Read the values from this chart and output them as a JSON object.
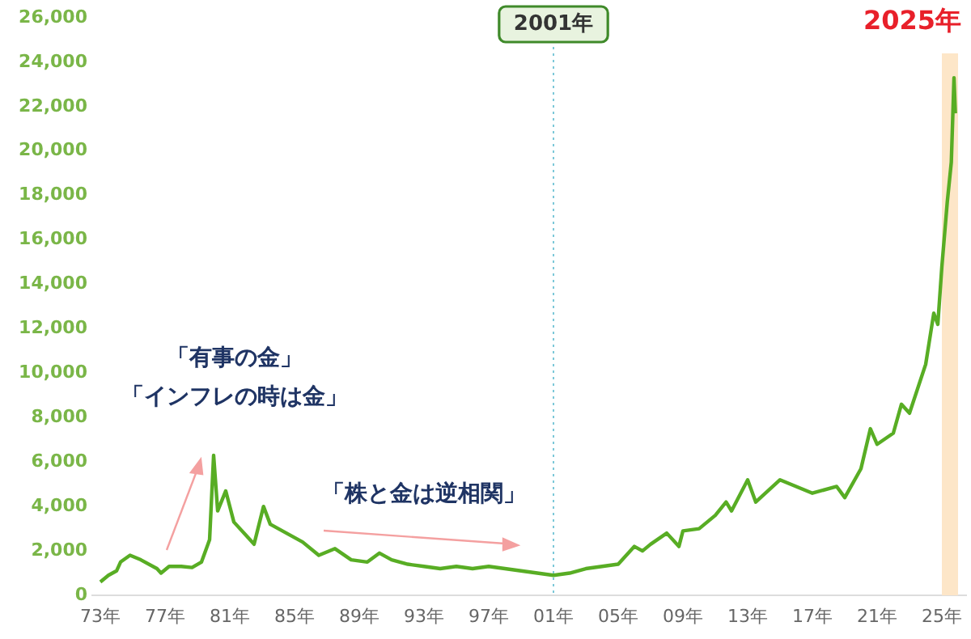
{
  "chart_data": {
    "type": "line",
    "x": [
      "1973-01",
      "1973-07",
      "1974-01",
      "1974-04",
      "1974-11",
      "1975-07",
      "1976-07",
      "1976-10",
      "1977-04",
      "1978-01",
      "1978-09",
      "1979-04",
      "1979-10",
      "1980-01",
      "1980-04",
      "1980-10",
      "1981-04",
      "1982-01",
      "1982-07",
      "1983-02",
      "1983-07",
      "1984-07",
      "1985-07",
      "1986-07",
      "1987-07",
      "1988-07",
      "1989-07",
      "1990-04",
      "1991-01",
      "1992-01",
      "1993-01",
      "1994-01",
      "1995-01",
      "1996-01",
      "1997-01",
      "1998-01",
      "1999-01",
      "2000-01",
      "2001-01",
      "2002-01",
      "2003-01",
      "2004-01",
      "2005-01",
      "2006-01",
      "2006-07",
      "2007-01",
      "2008-01",
      "2008-10",
      "2009-01",
      "2010-01",
      "2011-01",
      "2011-09",
      "2012-01",
      "2013-01",
      "2013-07",
      "2015-01",
      "2017-01",
      "2018-07",
      "2019-01",
      "2020-01",
      "2020-08",
      "2021-01",
      "2022-01",
      "2022-07",
      "2023-01",
      "2024-01",
      "2024-07",
      "2024-10",
      "2025-01",
      "2025-05",
      "2025-08",
      "2025-10",
      "2025-11"
    ],
    "series": [
      {
        "color": "#58ad24",
        "values": [
          600,
          900,
          1100,
          1500,
          1800,
          1600,
          1200,
          1000,
          1300,
          1300,
          1250,
          1500,
          2500,
          6300,
          3800,
          4700,
          3300,
          2700,
          2300,
          4000,
          3200,
          2800,
          2400,
          1800,
          2100,
          1600,
          1500,
          1900,
          1600,
          1400,
          1300,
          1200,
          1300,
          1200,
          1300,
          1200,
          1100,
          1000,
          900,
          1000,
          1200,
          1300,
          1400,
          2200,
          2000,
          2300,
          2800,
          2200,
          2900,
          3000,
          3600,
          4200,
          3800,
          5200,
          4200,
          5200,
          4600,
          4900,
          4400,
          5700,
          7500,
          6800,
          7300,
          8600,
          8200,
          10400,
          12700,
          12200,
          14800,
          17700,
          19500,
          23300,
          21700
        ]
      }
    ],
    "xlim": [
      "1972-07",
      "2026-07"
    ],
    "xticks": [
      {
        "value": "1973",
        "label": "73年"
      },
      {
        "value": "1977",
        "label": "77年"
      },
      {
        "value": "1981",
        "label": "81年"
      },
      {
        "value": "1985",
        "label": "85年"
      },
      {
        "value": "1989",
        "label": "89年"
      },
      {
        "value": "1993",
        "label": "93年"
      },
      {
        "value": "1997",
        "label": "97年"
      },
      {
        "value": "2001",
        "label": "01年"
      },
      {
        "value": "2005",
        "label": "05年"
      },
      {
        "value": "2009",
        "label": "09年"
      },
      {
        "value": "2013",
        "label": "13年"
      },
      {
        "value": "2017",
        "label": "17年"
      },
      {
        "value": "2021",
        "label": "21年"
      },
      {
        "value": "2025",
        "label": "25年"
      }
    ],
    "ylim": [
      0,
      26000
    ],
    "yticks": [
      0,
      {
        "value": 2000,
        "label": "2,000"
      },
      {
        "value": 4000,
        "label": "4,000"
      },
      {
        "value": 6000,
        "label": "6,000"
      },
      {
        "value": 8000,
        "label": "8,000"
      },
      {
        "value": 10000,
        "label": "10,000"
      },
      {
        "value": 12000,
        "label": "12,000"
      },
      {
        "value": 14000,
        "label": "14,000"
      },
      {
        "value": 16000,
        "label": "16,000"
      },
      {
        "value": 18000,
        "label": "18,000"
      },
      {
        "value": 20000,
        "label": "20,000"
      },
      {
        "value": 22000,
        "label": "22,000"
      },
      {
        "value": 24000,
        "label": "24,000"
      },
      {
        "value": 26000,
        "label": "26,000"
      }
    ],
    "ref_lines": [
      {
        "axis": "x",
        "value": "2001",
        "label": "2001年",
        "color": "#7cc8d8",
        "line_style": "dotted"
      }
    ],
    "bands": [
      {
        "axis": "x",
        "from": "2025",
        "to": "2026",
        "label": "2025年",
        "color": "#fde6c8"
      }
    ],
    "annotations": [
      "「有事の金」",
      "「インフレの時は金」",
      "「株と金は逆相関」"
    ],
    "grid": false,
    "legend": false,
    "marker": "none",
    "line_style": "solid"
  }
}
